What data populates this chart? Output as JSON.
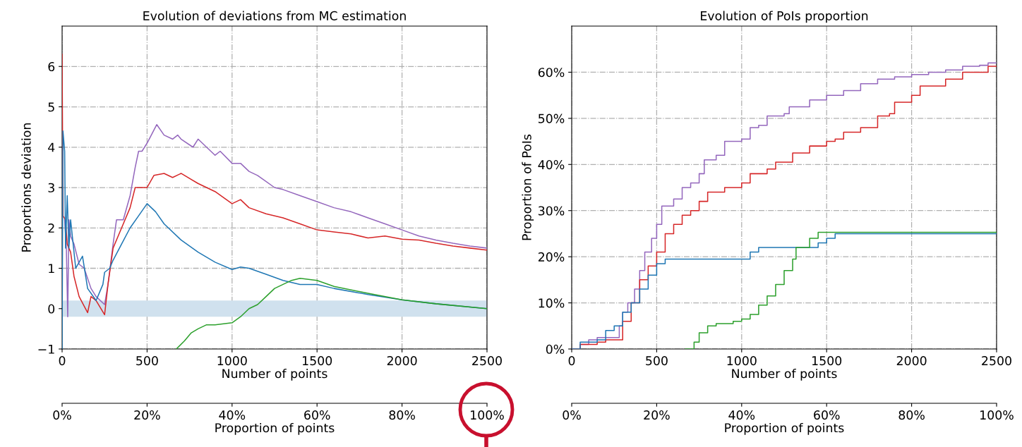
{
  "chart_data": [
    {
      "type": "line",
      "title": "Evolution of deviations from MC estimation",
      "xlabel": "Number of points",
      "ylabel": "Proportions deviation",
      "x2label": "Proportion of points",
      "xlim": [
        0,
        2500
      ],
      "xticks": [
        0,
        500,
        1000,
        1500,
        2000,
        2500
      ],
      "ylim": [
        -1,
        7
      ],
      "yticks": [
        {
          "value": -1,
          "label": "−1"
        },
        0,
        1,
        2,
        3,
        4,
        5,
        6
      ],
      "x2lim": [
        0,
        100
      ],
      "x2ticks": [
        {
          "value": 0,
          "label": "0%"
        },
        {
          "value": 20,
          "label": "20%"
        },
        {
          "value": 40,
          "label": "40%"
        },
        {
          "value": 60,
          "label": "60%"
        },
        {
          "value": 80,
          "label": "80%"
        },
        {
          "value": 100,
          "label": "100%"
        }
      ],
      "grid": true,
      "bands": [
        {
          "axis": "y",
          "from": -0.2,
          "to": 0.2,
          "color": "#d0e1ee"
        }
      ],
      "series": [
        {
          "color": "#9467bd",
          "x": [
            15,
            25,
            33,
            40,
            50,
            70,
            100,
            130,
            170,
            200,
            250,
            270,
            300,
            320,
            360,
            400,
            430,
            450,
            470,
            500,
            557,
            600,
            650,
            680,
            700,
            770,
            800,
            900,
            930,
            1000,
            1050,
            1100,
            1150,
            1250,
            1300,
            1400,
            1500,
            1600,
            1700,
            1800,
            1900,
            2000,
            2100,
            2200,
            2300,
            2400,
            2500
          ],
          "values": [
            2.2,
            1.5,
            -0.2,
            2.2,
            1.8,
            1.6,
            1.1,
            1.0,
            0.5,
            0.3,
            0.1,
            0.6,
            1.6,
            2.2,
            2.2,
            2.8,
            3.5,
            3.9,
            3.9,
            4.1,
            4.56,
            4.3,
            4.2,
            4.3,
            4.2,
            4.0,
            4.2,
            3.8,
            3.9,
            3.6,
            3.6,
            3.4,
            3.3,
            3.0,
            2.95,
            2.8,
            2.65,
            2.5,
            2.4,
            2.25,
            2.1,
            1.95,
            1.8,
            1.7,
            1.62,
            1.55,
            1.5
          ]
        },
        {
          "color": "#d62728",
          "x": [
            0,
            5,
            20,
            30,
            50,
            70,
            100,
            150,
            170,
            200,
            250,
            270,
            300,
            350,
            400,
            430,
            500,
            540,
            600,
            650,
            700,
            800,
            900,
            1000,
            1050,
            1100,
            1200,
            1300,
            1400,
            1500,
            1600,
            1700,
            1800,
            1900,
            2000,
            2100,
            2200,
            2300,
            2400,
            2500
          ],
          "values": [
            6.3,
            2.3,
            2.2,
            1.6,
            1.4,
            0.8,
            0.3,
            -0.1,
            0.3,
            0.2,
            -0.15,
            0.6,
            1.5,
            2.0,
            2.5,
            3.0,
            3.0,
            3.3,
            3.35,
            3.25,
            3.35,
            3.1,
            2.9,
            2.6,
            2.7,
            2.5,
            2.35,
            2.25,
            2.1,
            1.95,
            1.9,
            1.85,
            1.75,
            1.8,
            1.72,
            1.7,
            1.62,
            1.55,
            1.5,
            1.45
          ]
        },
        {
          "color": "#1f77b4",
          "x": [
            0,
            5,
            15,
            20,
            30,
            40,
            50,
            80,
            120,
            150,
            200,
            240,
            250,
            280,
            300,
            350,
            400,
            450,
            500,
            550,
            600,
            700,
            800,
            900,
            1000,
            1050,
            1100,
            1200,
            1300,
            1400,
            1500,
            1600,
            1800,
            2000,
            2200,
            2400,
            2500
          ],
          "values": [
            -1,
            4.4,
            3.9,
            1.5,
            2.8,
            1.5,
            2.2,
            1.0,
            1.3,
            0.5,
            0.2,
            0.6,
            0.9,
            1.0,
            1.2,
            1.6,
            2.0,
            2.3,
            2.6,
            2.4,
            2.1,
            1.7,
            1.4,
            1.15,
            0.97,
            1.03,
            1.0,
            0.85,
            0.7,
            0.6,
            0.6,
            0.5,
            0.35,
            0.22,
            0.12,
            0.04,
            0
          ]
        },
        {
          "color": "#2ca02c",
          "x": [
            672,
            720,
            760,
            800,
            850,
            900,
            1000,
            1050,
            1100,
            1150,
            1200,
            1250,
            1300,
            1350,
            1400,
            1500,
            1600,
            1800,
            2000,
            2200,
            2500
          ],
          "values": [
            -1,
            -0.8,
            -0.6,
            -0.5,
            -0.4,
            -0.4,
            -0.35,
            -0.2,
            0,
            0.1,
            0.3,
            0.5,
            0.6,
            0.7,
            0.75,
            0.7,
            0.55,
            0.38,
            0.22,
            0.12,
            0
          ]
        }
      ]
    },
    {
      "type": "step",
      "title": "Evolution of PoIs proportion",
      "xlabel": "Number of points",
      "ylabel": "Proportion of PoIs",
      "x2label": "Proportion of points",
      "xlim": [
        0,
        2500
      ],
      "xticks": [
        0,
        500,
        1000,
        1500,
        2000,
        2500
      ],
      "ylim": [
        0,
        70
      ],
      "yticks": [
        {
          "value": 0,
          "label": "0%"
        },
        {
          "value": 10,
          "label": "10%"
        },
        {
          "value": 20,
          "label": "20%"
        },
        {
          "value": 30,
          "label": "30%"
        },
        {
          "value": 40,
          "label": "40%"
        },
        {
          "value": 50,
          "label": "50%"
        },
        {
          "value": 60,
          "label": "60%"
        }
      ],
      "x2lim": [
        0,
        100
      ],
      "x2ticks": [
        {
          "value": 0,
          "label": "0%"
        },
        {
          "value": 20,
          "label": "20%"
        },
        {
          "value": 40,
          "label": "40%"
        },
        {
          "value": 60,
          "label": "60%"
        },
        {
          "value": 80,
          "label": "80%"
        },
        {
          "value": 100,
          "label": "100%"
        }
      ],
      "grid": true,
      "series": [
        {
          "color": "#9467bd",
          "x": [
            0,
            50,
            100,
            150,
            250,
            280,
            300,
            330,
            370,
            400,
            430,
            470,
            500,
            530,
            600,
            650,
            700,
            750,
            780,
            850,
            900,
            1000,
            1050,
            1100,
            1150,
            1250,
            1280,
            1400,
            1500,
            1600,
            1700,
            1800,
            1900,
            2000,
            2100,
            2200,
            2300,
            2400,
            2450,
            2500
          ],
          "values": [
            0,
            1,
            2,
            2.5,
            2.5,
            5,
            8,
            10,
            13,
            17,
            21,
            24,
            27,
            31,
            32.5,
            35,
            36,
            38,
            41,
            42,
            45,
            45.5,
            48,
            48.5,
            50.5,
            51,
            52.5,
            54,
            55,
            56,
            57.5,
            58.5,
            59,
            59.5,
            60,
            60.5,
            61.3,
            61.5,
            62,
            62
          ]
        },
        {
          "color": "#d62728",
          "x": [
            0,
            50,
            150,
            200,
            250,
            300,
            350,
            400,
            450,
            500,
            550,
            600,
            650,
            700,
            750,
            800,
            900,
            1000,
            1050,
            1150,
            1200,
            1300,
            1400,
            1500,
            1550,
            1600,
            1700,
            1800,
            1870,
            1900,
            2000,
            2050,
            2200,
            2300,
            2450,
            2500
          ],
          "values": [
            0,
            1,
            1.5,
            2,
            2,
            6,
            10,
            15,
            18,
            21,
            25,
            27,
            29,
            30,
            32,
            34,
            35,
            36,
            38,
            39,
            40.5,
            42.5,
            44,
            45,
            45.5,
            47,
            48,
            50.5,
            51,
            53.5,
            55,
            57,
            58.5,
            60,
            61.3,
            61.3
          ]
        },
        {
          "color": "#1f77b4",
          "x": [
            0,
            50,
            150,
            200,
            250,
            300,
            350,
            400,
            450,
            500,
            550,
            1000,
            1050,
            1100,
            1400,
            1450,
            1500,
            1550,
            2500
          ],
          "values": [
            0,
            1.5,
            2,
            4,
            5,
            8,
            10,
            13,
            16,
            18.5,
            19.5,
            19.5,
            21,
            22,
            22,
            23,
            24,
            25,
            25
          ]
        },
        {
          "color": "#2ca02c",
          "x": [
            670,
            720,
            750,
            800,
            850,
            950,
            1000,
            1050,
            1100,
            1150,
            1200,
            1250,
            1300,
            1320,
            1400,
            1450,
            2500
          ],
          "values": [
            0,
            1.5,
            3.5,
            5,
            5.5,
            6,
            6.5,
            7.5,
            9.5,
            11.5,
            14,
            17,
            19.5,
            22,
            24,
            25.3,
            25.3
          ]
        }
      ]
    }
  ]
}
